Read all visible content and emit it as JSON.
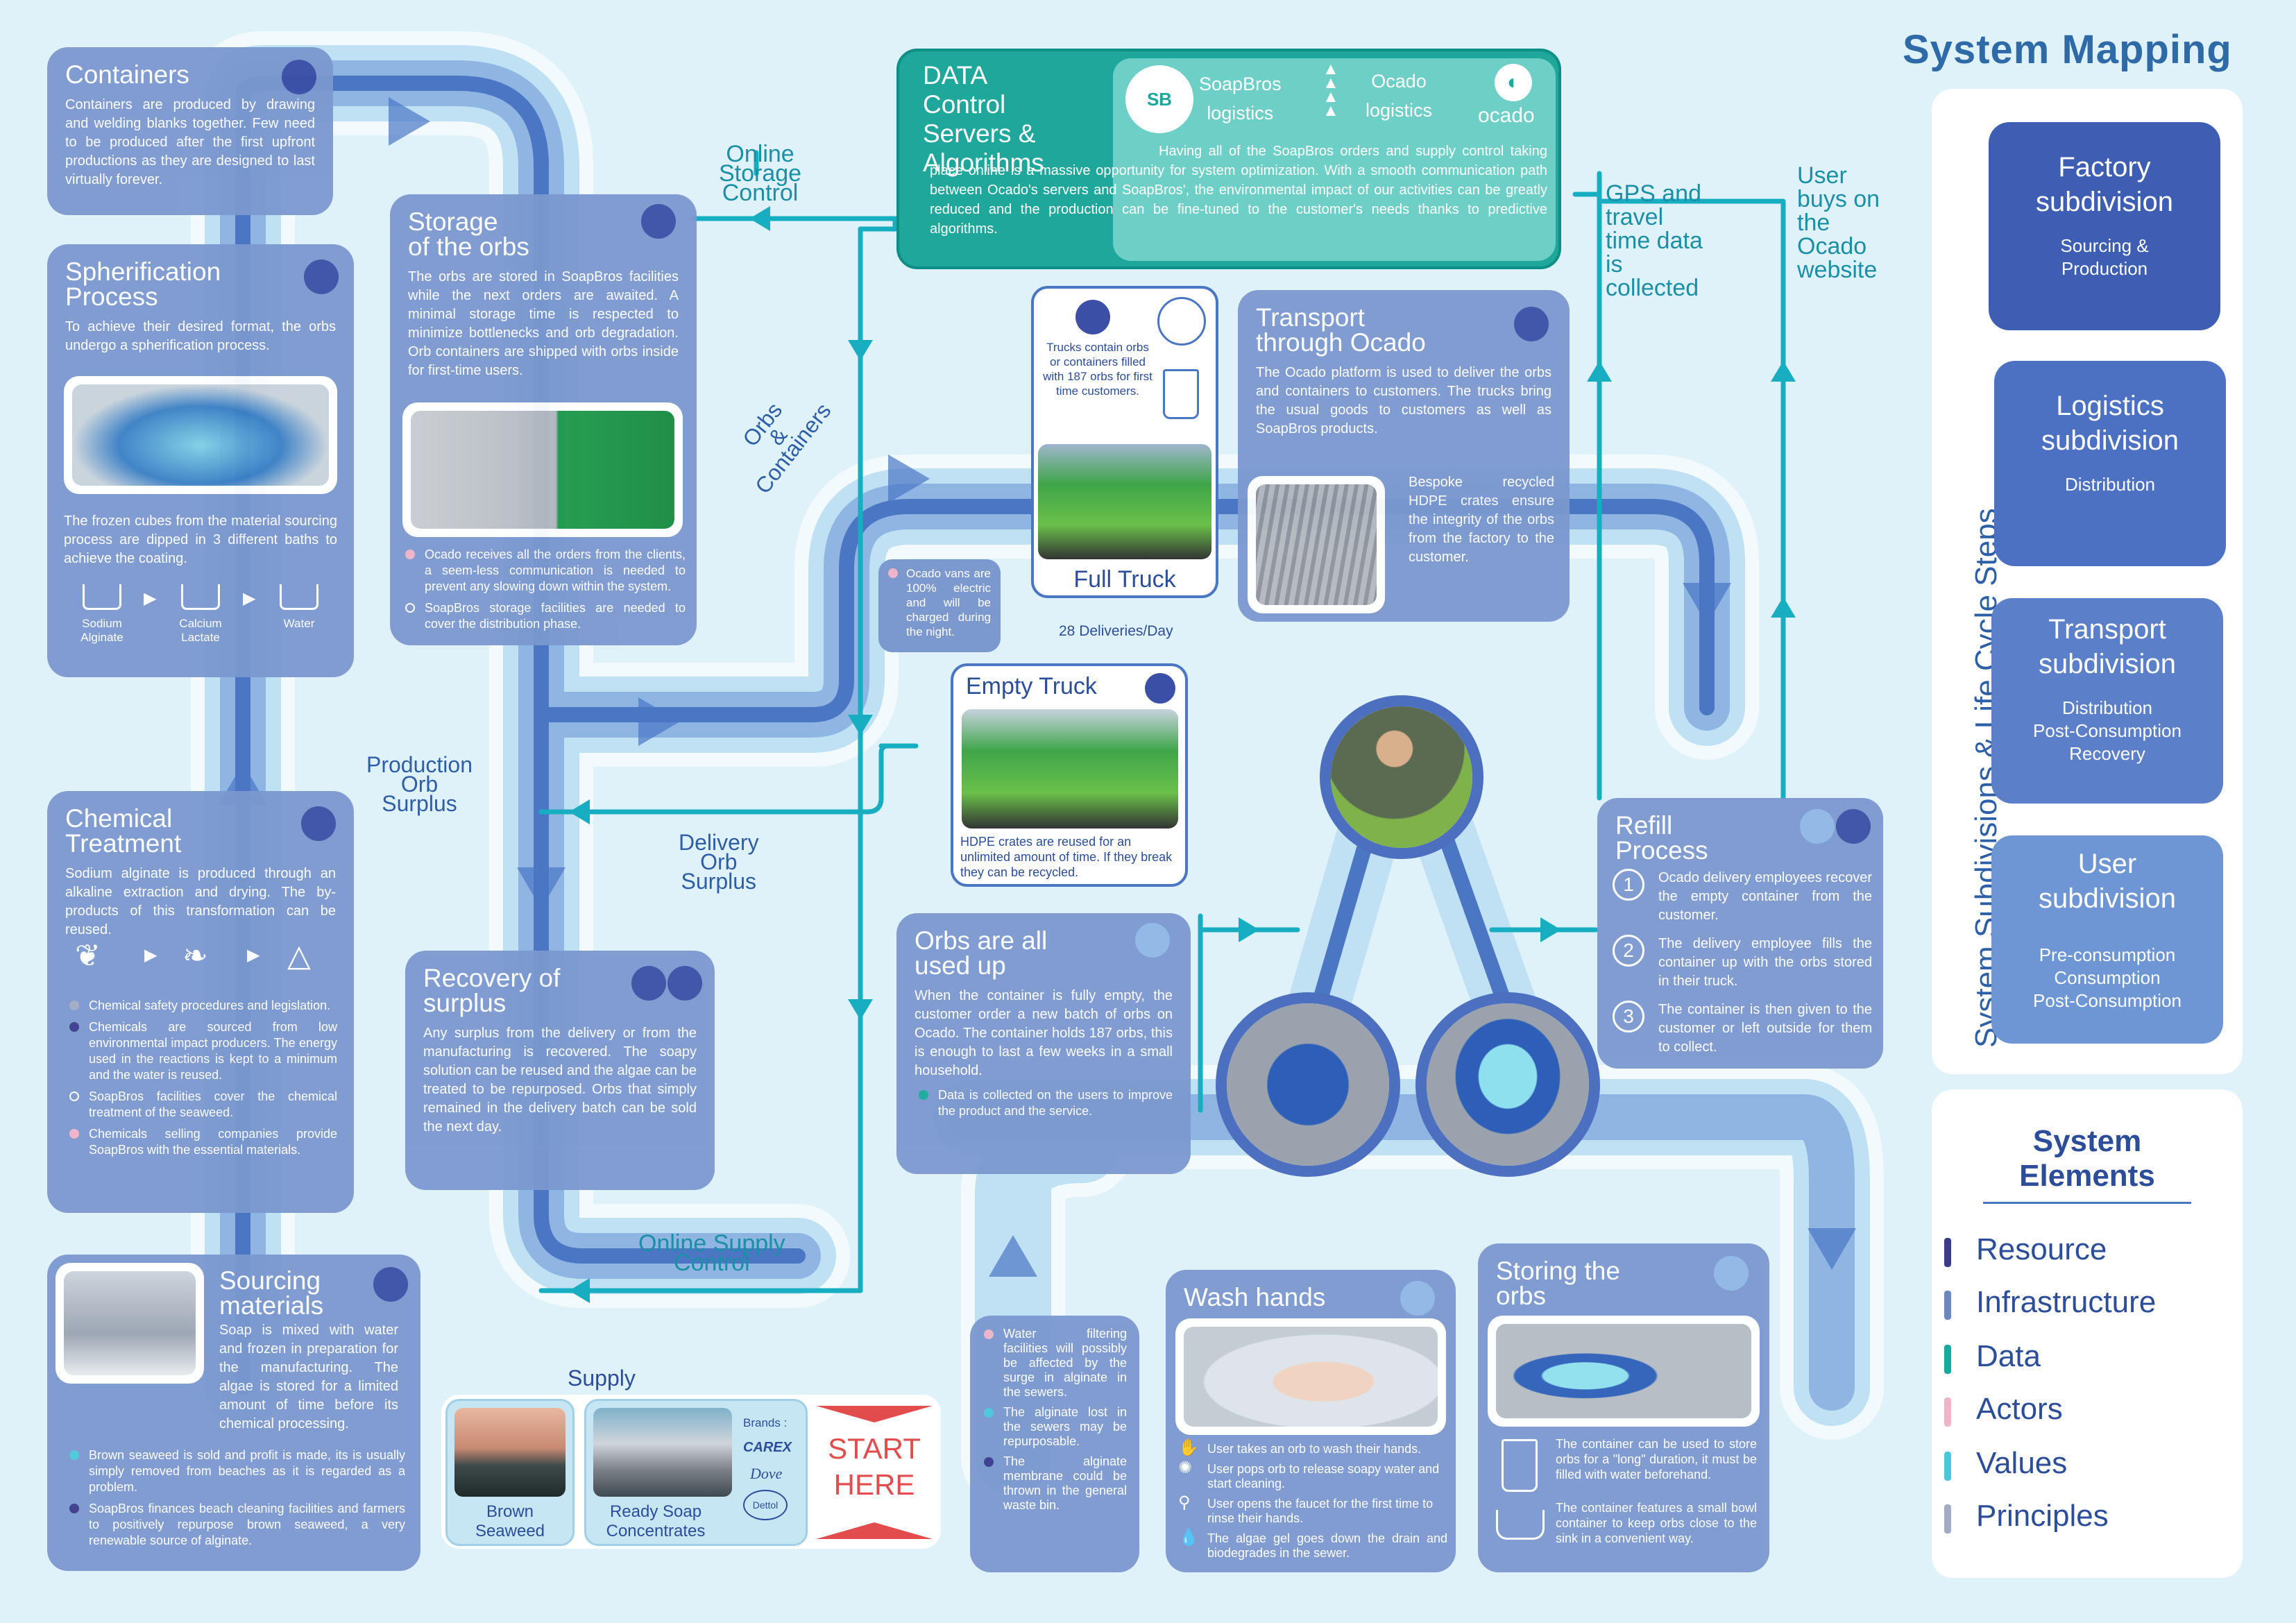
{
  "title": "System Mapping",
  "colors": {
    "resource": "#3b3a8c",
    "infrastructure": "#6e86c4",
    "data": "#17a99c",
    "actors": "#f0b3c8",
    "values": "#4cc7d8",
    "principles": "#a3aac4"
  },
  "containers": {
    "title": "Containers",
    "text": "Containers are produced by drawing and welding blanks together. Few need to be produced after the first upfront productions as they are designed to last virtually forever."
  },
  "spherification": {
    "title": "Spherification\nProcess",
    "text": "To achieve their desired format, the orbs undergo a spherification process.",
    "text2": "The frozen cubes from the material sourcing process are dipped in 3 different baths to achieve the coating.",
    "bath1": "Sodium\nAlginate",
    "bath2": "Calcium\nLactate",
    "bath3": "Water"
  },
  "chemical": {
    "title": "Chemical\nTreatment",
    "text": "Sodium alginate is produced through an alkaline extraction and drying. The by-products of this transformation can be reused.",
    "b1": "Chemical safety procedures and legislation.",
    "b2": "Chemicals are sourced from low environmental impact producers. The energy used in the reactions is kept to a minimum and the water is reused.",
    "b3": "SoapBros facilities cover the chemical treatment of the seaweed.",
    "b4": "Chemicals selling companies provide SoapBros with the essential materials."
  },
  "sourcing": {
    "title": "Sourcing\nmaterials",
    "text": "Soap is mixed with water and frozen in preparation for the manufacturing. The algae is stored for a limited amount of time before its chemical processing.",
    "b1": "Brown seaweed is sold and profit is made, its is usually simply removed from beaches as it is regarded as a problem.",
    "b2": "SoapBros finances beach cleaning facilities and farmers to positively repurpose brown seaweed, a very renewable source of alginate."
  },
  "storage": {
    "title": "Storage\nof the orbs",
    "text": "The orbs are stored in SoapBros facilities while the next orders are awaited. A minimal storage time is respected to minimize bottlenecks and orb degradation. Orb containers are shipped with orbs inside for first-time users.",
    "b1": "Ocado receives all the orders from the clients, a seem-less communication is needed to prevent any slowing down within the system.",
    "b2": "SoapBros storage facilities are needed to cover the distribution phase."
  },
  "recovery": {
    "title": "Recovery of\nsurplus",
    "text": "Any surplus from the delivery or from the manufacturing is recovered. The soapy solution can be reused and the algae can be treated to be repurposed. Orbs that simply remained in the delivery batch can be sold the next day."
  },
  "data_box": {
    "title": "DATA\nControl\nServers &\nAlgorithms",
    "soapbros": "SoapBros\nlogistics",
    "ocado": "Ocado\nlogistics",
    "ocado_logo": "ocado",
    "text": "Having all of the SoapBros orders and supply control taking place online is a massive opportunity for system optimization. With a smooth communication path between Ocado's servers and SoapBros', the environmental impact of our activities can be greatly reduced and the production can be fine-tuned to the customer's needs thanks to predictive algorithms."
  },
  "full_truck": {
    "text": "Trucks contain orbs or containers filled with 187 orbs for first time customers.",
    "label": "Full Truck",
    "deliveries": "28 Deliveries/Day"
  },
  "vans_note": "Ocado vans are 100% electric and will be charged during the night.",
  "transport": {
    "title": "Transport\nthrough Ocado",
    "text": "The Ocado platform is used to deliver the orbs and containers to customers. The trucks bring the usual goods to customers as well as SoapBros products.",
    "crates": "Bespoke recycled HDPE crates ensure the integrity of the orbs from the factory to the customer."
  },
  "empty_truck": {
    "title": "Empty Truck",
    "text": "HDPE crates are reused for an unlimited amount of time. If they break they can be recycled."
  },
  "orbs_used": {
    "title": "Orbs are all\nused up",
    "text": "When the container is fully empty, the customer order a new batch of orbs on Ocado. The container holds 187 orbs, this is enough to last a few weeks in a small household.",
    "b1": "Data is collected on the users to improve the product and the service."
  },
  "refill": {
    "title": "Refill\nProcess",
    "s1": "Ocado delivery employees recover the empty container from the customer.",
    "s2": "The delivery employee fills the container up with the orbs stored in their truck.",
    "s3": "The container is then given to the customer or left outside for them to collect.",
    "n1": "1",
    "n2": "2",
    "n3": "3"
  },
  "wash": {
    "title": "Wash hands",
    "s1": "User takes an orb to wash their hands.",
    "s2": "User pops orb to release soapy water and start cleaning.",
    "s3": "User opens the faucet for the first time to rinse their hands.",
    "s4": "The algae gel goes down the drain and biodegrades in the sewer."
  },
  "storing": {
    "title": "Storing the\norbs",
    "s1": "The container can be used to store orbs for a \"long\" duration, it must be filled with water beforehand.",
    "s2": "The container features a small bowl container to keep orbs close to the sink in a convenient way."
  },
  "water_note": {
    "b1": "Water filtering facilities will possibly be affected by the surge in alginate in the sewers.",
    "b2": "The alginate lost in the sewers may be repurposable.",
    "b3": "The alginate membrane could be thrown in the general waste bin."
  },
  "supply": {
    "label": "Supply",
    "seaweed": "Brown\nSeaweed",
    "concentrates": "Ready Soap\nConcentrates",
    "brands": "Brands :",
    "brand1": "CAREX",
    "brand2": "Dove",
    "brand3": "Dettol",
    "start": "START\nHERE"
  },
  "flow_labels": {
    "online_storage": "Online\nStorage\nControl",
    "online_supply": "Online Supply\nControl",
    "gps": "GPS and\ntravel\ntime data\nis\ncollected",
    "user_buys": "User\nbuys on\nthe\nOcado\nwebsite",
    "production_surplus": "Production\nOrb\nSurplus",
    "delivery_surplus": "Delivery\nOrb\nSurplus",
    "orbs_containers": "Orbs\n&\nContainers"
  },
  "vertical_title": "System Subdivisions & Life Cycle Steps",
  "subdivisions": [
    {
      "title": "Factory\nsubdivision",
      "sub": "Sourcing &\nProduction"
    },
    {
      "title": "Logistics\nsubdivision",
      "sub": "Distribution"
    },
    {
      "title": "Transport\nsubdivision",
      "sub": "Distribution\nPost-Consumption\nRecovery"
    },
    {
      "title": "User\nsubdivision",
      "sub": "Pre-consumption\nConsumption\nPost-Consumption"
    }
  ],
  "legend": {
    "title": "System\nElements",
    "items": [
      "Resource",
      "Infrastructure",
      "Data",
      "Actors",
      "Values",
      "Principles"
    ]
  }
}
